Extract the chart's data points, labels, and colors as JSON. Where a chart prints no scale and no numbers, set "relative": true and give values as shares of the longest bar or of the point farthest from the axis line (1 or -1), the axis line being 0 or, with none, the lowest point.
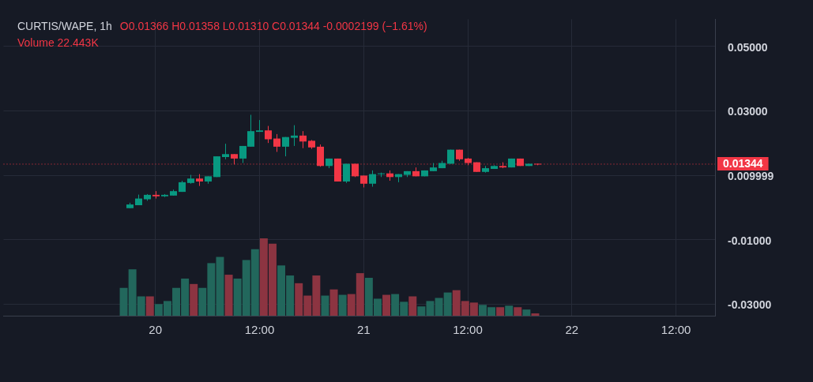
{
  "chart_data": [
    {
      "type": "candlestick",
      "title": "CURTIS/WAPE, 1h",
      "subtitle": "O0.01366  H0.01358  L0.01310  C0.01344  -0.0002199 (−1.61%)",
      "annotations": [
        "Volume  22.443K"
      ],
      "categories": [
        null,
        null,
        null,
        null,
        null,
        null,
        null,
        null,
        null,
        null,
        null,
        null,
        null,
        null,
        null,
        null,
        null,
        "20",
        null,
        null,
        null,
        null,
        null,
        null,
        null,
        null,
        null,
        null,
        null,
        "12:00",
        null,
        null,
        null,
        null,
        null,
        null,
        null,
        null,
        null,
        null,
        null,
        "21",
        null,
        null,
        null,
        null,
        null,
        null,
        null,
        null,
        null,
        null,
        null,
        "12:00",
        null,
        null,
        null,
        null,
        null,
        null,
        null,
        null,
        null,
        null,
        null,
        "22",
        null,
        null,
        null,
        null,
        null,
        null,
        null,
        null,
        null,
        null,
        null,
        "12:00",
        null,
        null,
        null,
        null
      ],
      "ohlc": [
        null,
        null,
        null,
        null,
        null,
        null,
        null,
        null,
        null,
        null,
        null,
        null,
        null,
        null,
        [
          -0.00023,
          0.00146,
          -0.00023,
          0.00092
        ],
        [
          0.00069,
          0.00398,
          0.00069,
          0.00276
        ],
        [
          0.00253,
          0.00414,
          0.00207,
          0.00391
        ],
        [
          0.00391,
          0.00506,
          0.00276,
          0.00345
        ],
        [
          0.00345,
          0.00414,
          0.00322,
          0.00391
        ],
        [
          0.00368,
          0.00552,
          0.00368,
          0.00506
        ],
        [
          0.00483,
          0.00828,
          0.00483,
          0.00782
        ],
        [
          0.00759,
          0.01011,
          0.00736,
          0.00897
        ],
        [
          0.00897,
          0.01034,
          0.00667,
          0.00805
        ],
        [
          0.00805,
          0.00966,
          0.00736,
          0.00966
        ],
        [
          0.00943,
          0.01586,
          0.00943,
          0.01586
        ],
        [
          0.01563,
          0.01977,
          0.01494,
          0.01655
        ],
        [
          0.01655,
          0.01655,
          0.01333,
          0.01517
        ],
        [
          0.01517,
          0.01908,
          0.01379,
          0.01908
        ],
        [
          0.01885,
          0.02874,
          0.01885,
          0.02368
        ],
        [
          0.02345,
          0.02713,
          0.02345,
          0.02391
        ],
        [
          0.02391,
          0.02529,
          0.02,
          0.02115
        ],
        [
          0.02138,
          0.02276,
          0.01724,
          0.01885
        ],
        [
          0.01885,
          0.02184,
          0.01586,
          0.02184
        ],
        [
          0.02161,
          0.02552,
          0.01908,
          0.0223
        ],
        [
          0.0223,
          0.02368,
          0.01839,
          0.02046
        ],
        [
          0.02069,
          0.02092,
          0.01816,
          0.01862
        ],
        [
          0.01885,
          0.01954,
          0.01264,
          0.01287
        ],
        [
          0.01287,
          0.01517,
          0.01218,
          0.01517
        ],
        [
          0.01517,
          0.01517,
          0.00805,
          0.00805
        ],
        [
          0.00805,
          0.01356,
          0.00759,
          0.01356
        ],
        [
          0.01356,
          0.01356,
          0.00943,
          0.00966
        ],
        [
          0.00989,
          0.00989,
          0.00621,
          0.00736
        ],
        [
          0.00736,
          0.01149,
          0.00644,
          0.01034
        ],
        [
          0.01034,
          0.0108,
          0.00943,
          0.01057
        ],
        [
          0.01057,
          0.01149,
          0.00828,
          0.00943
        ],
        [
          0.00943,
          0.01034,
          0.00782,
          0.01034
        ],
        [
          0.01011,
          0.01126,
          0.00943,
          0.01126
        ],
        [
          0.01126,
          0.01241,
          0.00966,
          0.00966
        ],
        [
          0.00966,
          0.01149,
          0.00966,
          0.01149
        ],
        [
          0.01126,
          0.01379,
          0.01126,
          0.01241
        ],
        [
          0.01218,
          0.01448,
          0.01218,
          0.01379
        ],
        [
          0.01356,
          0.01793,
          0.01356,
          0.01793
        ],
        [
          0.01793,
          0.01793,
          0.01448,
          0.01494
        ],
        [
          0.01517,
          0.0154,
          0.0131,
          0.01379
        ],
        [
          0.01402,
          0.01402,
          0.01103,
          0.01103
        ],
        [
          0.01103,
          0.01287,
          0.0108,
          0.01218
        ],
        [
          0.01195,
          0.0131,
          0.01195,
          0.01287
        ],
        [
          0.01287,
          0.01402,
          0.01218,
          0.01241
        ],
        [
          0.01241,
          0.01517,
          0.01241,
          0.01517
        ],
        [
          0.01517,
          0.01517,
          0.01287,
          0.01287
        ],
        [
          0.01287,
          0.01356,
          0.01287,
          0.01356
        ],
        [
          0.01356,
          0.01356,
          0.0131,
          0.01344
        ],
        null,
        null,
        null,
        null,
        null,
        null,
        null,
        null,
        null,
        null,
        null,
        null,
        null,
        null,
        null,
        null,
        null,
        null,
        null,
        null
      ],
      "colors": [
        null,
        null,
        null,
        null,
        null,
        null,
        null,
        null,
        null,
        null,
        null,
        null,
        null,
        null,
        "#089981",
        "#089981",
        "#089981",
        "#f23645",
        "#089981",
        "#089981",
        "#089981",
        "#089981",
        "#f23645",
        "#089981",
        "#089981",
        "#089981",
        "#f23645",
        "#089981",
        "#089981",
        "#089981",
        "#f23645",
        "#f23645",
        "#089981",
        "#089981",
        "#f23645",
        "#f23645",
        "#f23645",
        "#089981",
        "#f23645",
        "#089981",
        "#f23645",
        "#f23645",
        "#089981",
        "#089981",
        "#f23645",
        "#089981",
        "#089981",
        "#f23645",
        "#089981",
        "#089981",
        "#089981",
        "#089981",
        "#f23645",
        "#f23645",
        "#f23645",
        "#089981",
        "#089981",
        "#f23645",
        "#089981",
        "#f23645",
        "#089981",
        "#f23645",
        null,
        null,
        null,
        null,
        null,
        null,
        null,
        null,
        null,
        null,
        null,
        null,
        null,
        null,
        null,
        null,
        null,
        null,
        null,
        null
      ],
      "ylim": [
        -0.0336,
        0.0584
      ],
      "yticks": [
        {
          "value": 0.05,
          "label": "0.05000"
        },
        {
          "value": 0.03,
          "label": "0.03000"
        },
        0.009999,
        {
          "value": -0.01,
          "label": "-0.01000"
        },
        {
          "value": -0.03,
          "label": "-0.03000"
        }
      ],
      "ref_lines": [
        {
          "axis": "y",
          "value": 0.01344,
          "label": "0.01344",
          "color": "#f23645",
          "line_style": "dotted"
        }
      ],
      "grid": true,
      "legend": false
    },
    {
      "type": "bar",
      "relative": true,
      "categories": [
        null,
        null,
        null,
        null,
        null,
        null,
        null,
        null,
        null,
        null,
        null,
        null,
        null,
        null,
        null,
        null,
        null,
        null,
        null,
        null,
        null,
        null,
        null,
        null,
        null,
        null,
        null,
        null,
        null,
        null,
        null,
        null,
        null,
        null,
        null,
        null,
        null,
        null,
        null,
        null,
        null,
        null,
        null,
        null,
        null,
        null,
        null,
        null
      ],
      "values": [
        0.36,
        0.6,
        0.25,
        0.25,
        0.15,
        0.19,
        0.36,
        0.48,
        0.41,
        0.36,
        0.68,
        0.76,
        0.53,
        0.48,
        0.72,
        0.86,
        1,
        0.93,
        0.65,
        0.52,
        0.42,
        0.26,
        0.52,
        0.26,
        0.34,
        0.27,
        0.28,
        0.55,
        0.49,
        0.22,
        0.27,
        0.28,
        0.18,
        0.25,
        0.12,
        0.19,
        0.23,
        0.3,
        0.33,
        0.19,
        0.17,
        0.14,
        0.11,
        0.11,
        0.13,
        0.11,
        0.08,
        0.03
      ],
      "colors": [
        "#22675c",
        "#22675c",
        "#22675c",
        "#8c3441",
        "#22675c",
        "#22675c",
        "#22675c",
        "#22675c",
        "#8c3441",
        "#22675c",
        "#22675c",
        "#22675c",
        "#8c3441",
        "#22675c",
        "#22675c",
        "#22675c",
        "#8c3441",
        "#8c3441",
        "#22675c",
        "#22675c",
        "#8c3441",
        "#8c3441",
        "#8c3441",
        "#22675c",
        "#8c3441",
        "#22675c",
        "#8c3441",
        "#8c3441",
        "#22675c",
        "#22675c",
        "#8c3441",
        "#22675c",
        "#22675c",
        "#8c3441",
        "#22675c",
        "#22675c",
        "#22675c",
        "#22675c",
        "#8c3441",
        "#8c3441",
        "#8c3441",
        "#22675c",
        "#22675c",
        "#8c3441",
        "#22675c",
        "#8c3441",
        "#22675c",
        "#8c3441"
      ],
      "legend": false
    }
  ]
}
